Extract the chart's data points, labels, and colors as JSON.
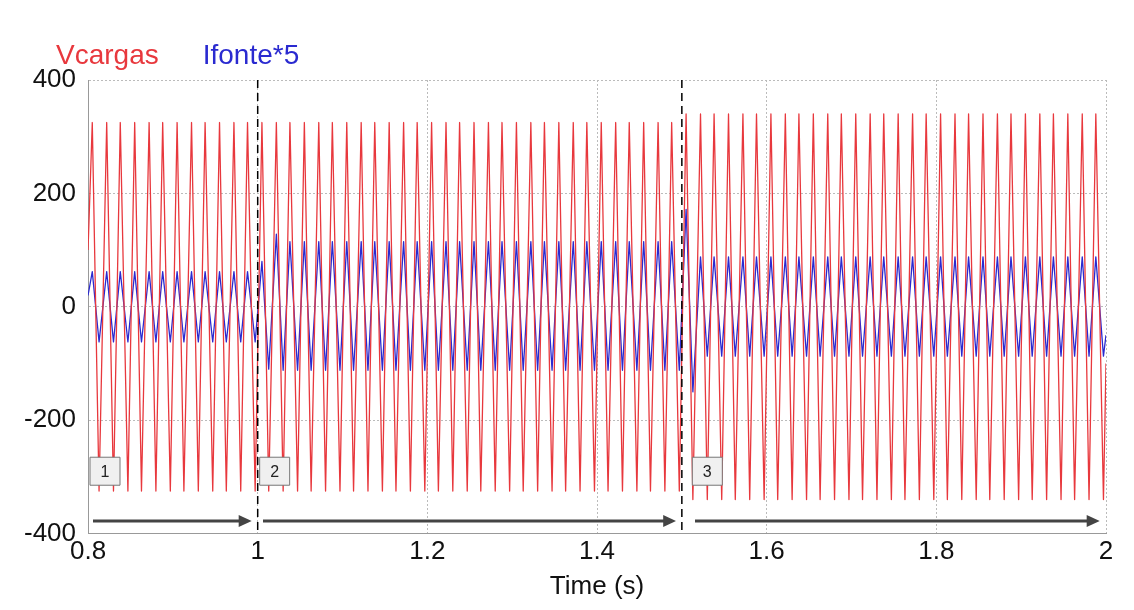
{
  "chart_data": {
    "type": "line",
    "xlabel": "Time (s)",
    "x": [
      0.8,
      0.805,
      0.813,
      0.822,
      0.83,
      0.838,
      0.847,
      0.855,
      0.863,
      0.872,
      0.88,
      0.888,
      0.897,
      0.905,
      0.913,
      0.922,
      0.93,
      0.938,
      0.947,
      0.955,
      0.963,
      0.972,
      0.98,
      0.988,
      0.997,
      1.005,
      1.013,
      1.022,
      1.03,
      1.038,
      1.047,
      1.055,
      1.063,
      1.072,
      1.08,
      1.088,
      1.097,
      1.105,
      1.113,
      1.122,
      1.13,
      1.138,
      1.147,
      1.155,
      1.163,
      1.172,
      1.18,
      1.188,
      1.197,
      1.205,
      1.213,
      1.222,
      1.23,
      1.238,
      1.247,
      1.255,
      1.263,
      1.272,
      1.28,
      1.288,
      1.297,
      1.305,
      1.313,
      1.322,
      1.33,
      1.338,
      1.347,
      1.355,
      1.363,
      1.372,
      1.38,
      1.388,
      1.397,
      1.405,
      1.413,
      1.422,
      1.43,
      1.438,
      1.447,
      1.455,
      1.463,
      1.472,
      1.48,
      1.488,
      1.497,
      1.505,
      1.513,
      1.522,
      1.53,
      1.538,
      1.547,
      1.555,
      1.563,
      1.572,
      1.58,
      1.588,
      1.597,
      1.605,
      1.613,
      1.622,
      1.63,
      1.638,
      1.647,
      1.655,
      1.663,
      1.672,
      1.68,
      1.688,
      1.697,
      1.705,
      1.713,
      1.722,
      1.73,
      1.738,
      1.747,
      1.755,
      1.763,
      1.772,
      1.78,
      1.788,
      1.797,
      1.805,
      1.813,
      1.822,
      1.83,
      1.838,
      1.847,
      1.855,
      1.863,
      1.872,
      1.88,
      1.888,
      1.897,
      1.905,
      1.913,
      1.922,
      1.93,
      1.938,
      1.947,
      1.955,
      1.963,
      1.972,
      1.98,
      1.988,
      1.997,
      2.0
    ],
    "series": [
      {
        "name": "Vcargas",
        "color": "#e8383d",
        "values": [
          100,
          325,
          -325,
          325,
          -325,
          325,
          -325,
          325,
          -325,
          325,
          -325,
          325,
          -325,
          325,
          -325,
          325,
          -325,
          325,
          -325,
          325,
          -325,
          325,
          -325,
          325,
          -325,
          325,
          -325,
          325,
          -325,
          325,
          -325,
          325,
          -325,
          325,
          -325,
          325,
          -325,
          325,
          -325,
          325,
          -325,
          325,
          -325,
          325,
          -325,
          325,
          -325,
          325,
          -325,
          325,
          -325,
          325,
          -325,
          325,
          -325,
          325,
          -325,
          325,
          -325,
          325,
          -325,
          325,
          -325,
          325,
          -325,
          325,
          -325,
          325,
          -325,
          325,
          -325,
          325,
          -325,
          325,
          -325,
          325,
          -325,
          325,
          -325,
          325,
          -325,
          325,
          -325,
          325,
          -325,
          340,
          -340,
          340,
          -340,
          340,
          -340,
          340,
          -340,
          340,
          -340,
          340,
          -340,
          340,
          -340,
          340,
          -340,
          340,
          -340,
          340,
          -340,
          340,
          -340,
          340,
          -340,
          340,
          -340,
          340,
          -340,
          340,
          -340,
          340,
          -340,
          340,
          -340,
          340,
          -340,
          340,
          -340,
          340,
          -340,
          340,
          -340,
          340,
          -340,
          340,
          -340,
          340,
          -340,
          340,
          -340,
          340,
          -340,
          340,
          -340,
          340,
          -340,
          340,
          -340,
          340,
          -340,
          -100
        ]
      },
      {
        "name": "Ifonte*5",
        "color": "#2a2ad0",
        "values": [
          20,
          62,
          -62,
          62,
          -62,
          62,
          -62,
          62,
          -62,
          62,
          -62,
          62,
          -62,
          62,
          -62,
          62,
          -62,
          62,
          -62,
          62,
          -62,
          62,
          -62,
          62,
          -62,
          80,
          -110,
          128,
          -112,
          115,
          -112,
          115,
          -112,
          115,
          -112,
          115,
          -112,
          115,
          -112,
          115,
          -112,
          115,
          -112,
          115,
          -112,
          115,
          -112,
          115,
          -112,
          115,
          -112,
          115,
          -112,
          115,
          -112,
          115,
          -112,
          115,
          -112,
          115,
          -112,
          115,
          -112,
          115,
          -112,
          115,
          -112,
          115,
          -112,
          115,
          -112,
          115,
          -112,
          115,
          -112,
          115,
          -112,
          115,
          -112,
          115,
          -112,
          115,
          -112,
          115,
          -112,
          172,
          -150,
          88,
          -87,
          88,
          -87,
          88,
          -87,
          88,
          -87,
          88,
          -87,
          88,
          -87,
          88,
          -87,
          88,
          -87,
          88,
          -87,
          88,
          -87,
          88,
          -87,
          88,
          -87,
          88,
          -87,
          88,
          -87,
          88,
          -87,
          88,
          -87,
          88,
          -87,
          88,
          -87,
          88,
          -87,
          88,
          -87,
          88,
          -87,
          88,
          -87,
          88,
          -87,
          88,
          -87,
          88,
          -87,
          88,
          -87,
          88,
          -87,
          88,
          -87,
          88,
          -87,
          -50
        ]
      }
    ],
    "xlim": [
      0.8,
      2
    ],
    "xticks": [
      0.8,
      1,
      1.2,
      1.4,
      1.6,
      1.8,
      2
    ],
    "ylim": [
      -400,
      400
    ],
    "yticks": [
      -400,
      -200,
      0,
      200,
      400
    ],
    "grid": true,
    "legend": "top left",
    "marker": "none",
    "line_style": "solid",
    "ref_lines": [
      {
        "axis": "x",
        "value": 1,
        "color": "#000000",
        "line_style": "dashed"
      },
      {
        "axis": "x",
        "value": 1.5,
        "color": "#000000",
        "line_style": "dashed"
      }
    ],
    "annotations": [
      {
        "text": "1",
        "x": 0.82,
        "y": -290
      },
      {
        "text": "2",
        "x": 1.02,
        "y": -290
      },
      {
        "text": "3",
        "x": 1.53,
        "y": -290
      }
    ]
  }
}
